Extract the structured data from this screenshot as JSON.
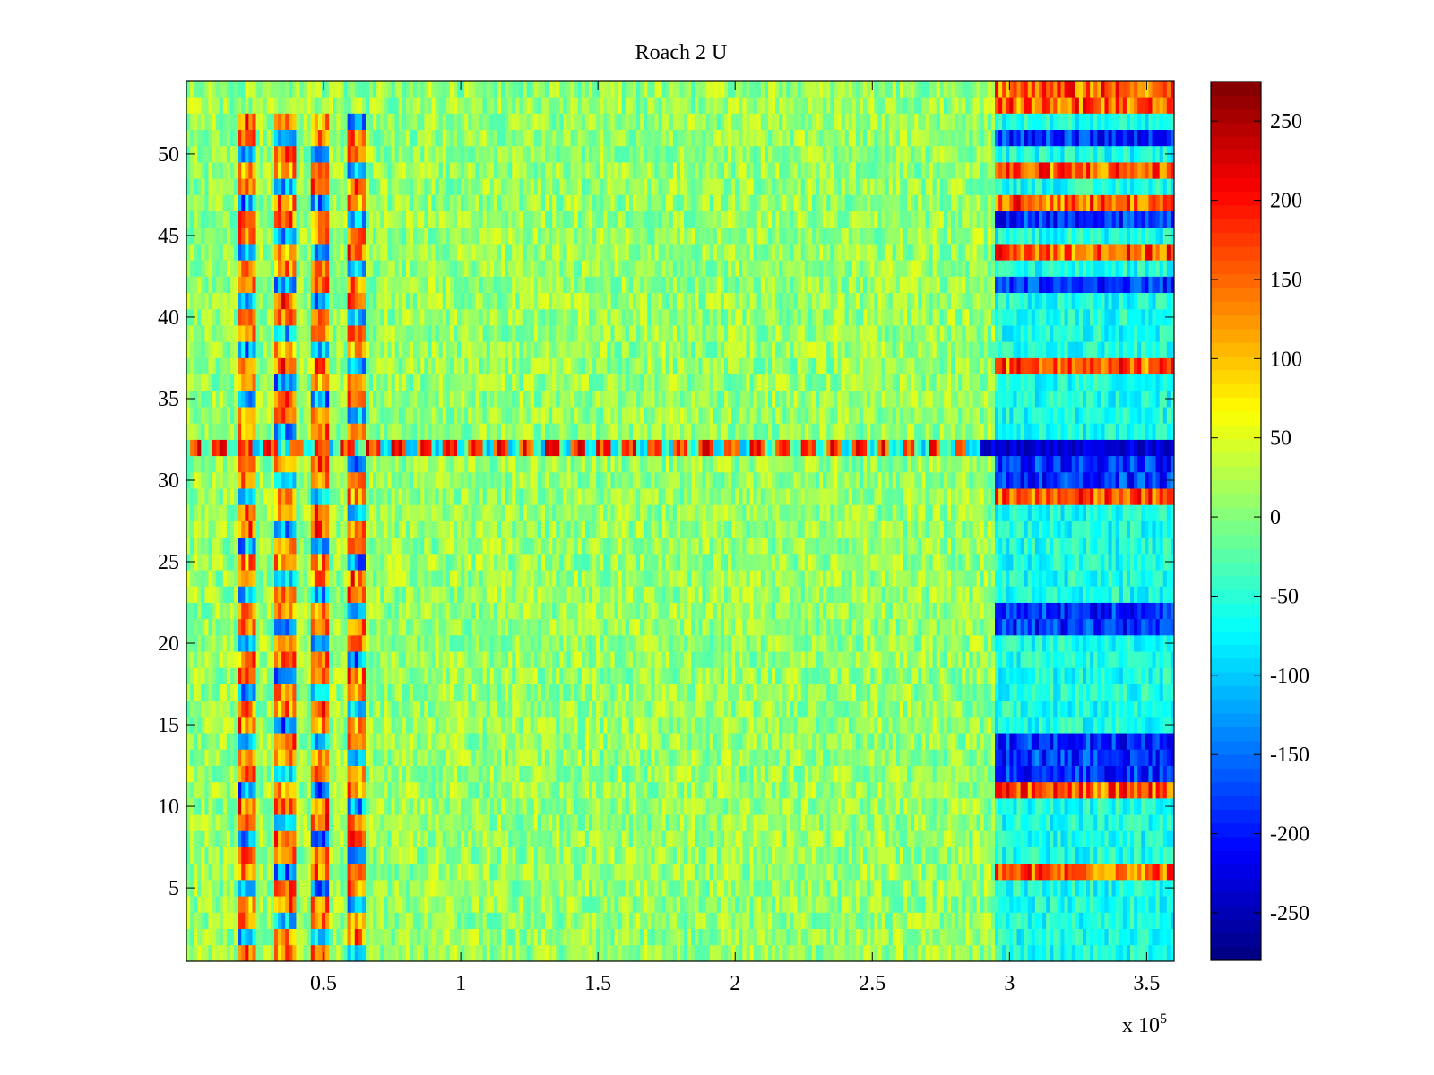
{
  "chart_data": {
    "type": "heatmap",
    "title": "Roach 2 U",
    "xlabel": "",
    "ylabel": "",
    "x_multiplier_label": "x 10",
    "x_multiplier_exponent": "5",
    "xlim": [
      0,
      3.6
    ],
    "ylim": [
      0.5,
      54.5
    ],
    "x_ticks": [
      0.5,
      1,
      1.5,
      2,
      2.5,
      3,
      3.5
    ],
    "x_tick_labels": [
      "0.5",
      "1",
      "1.5",
      "2",
      "2.5",
      "3",
      "3.5"
    ],
    "y_ticks": [
      5,
      10,
      15,
      20,
      25,
      30,
      35,
      40,
      45,
      50
    ],
    "y_tick_labels": [
      "5",
      "10",
      "15",
      "20",
      "25",
      "30",
      "35",
      "40",
      "45",
      "50"
    ],
    "colormap": "jet",
    "clim": [
      -280,
      275
    ],
    "colorbar_ticks": [
      250,
      200,
      150,
      100,
      50,
      0,
      -50,
      -100,
      -150,
      -200,
      -250
    ],
    "colorbar_tick_labels": [
      "250",
      "200",
      "150",
      "100",
      "50",
      "0",
      "-50",
      "-100",
      "-150",
      "-200",
      "-250"
    ],
    "rows": 54,
    "columns_per_row": 270,
    "description_regions": {
      "baseline_value_range": [
        -60,
        60
      ],
      "row_32_strong_band": "alternating +250/-100 along 0-2.8e5, -250 after 2.95e5",
      "right_block_start_x": 2.95,
      "right_block_high_rows": [
        6,
        11,
        29,
        37,
        44,
        47,
        49,
        53,
        54
      ],
      "right_block_low_rows": [
        12,
        13,
        14,
        21,
        22,
        30,
        31,
        32,
        42,
        46,
        51
      ],
      "left_stripes_x": [
        0.22,
        0.36,
        0.49,
        0.62
      ]
    },
    "colors": {
      "background": "#ffffff",
      "axes": "#000000"
    }
  }
}
